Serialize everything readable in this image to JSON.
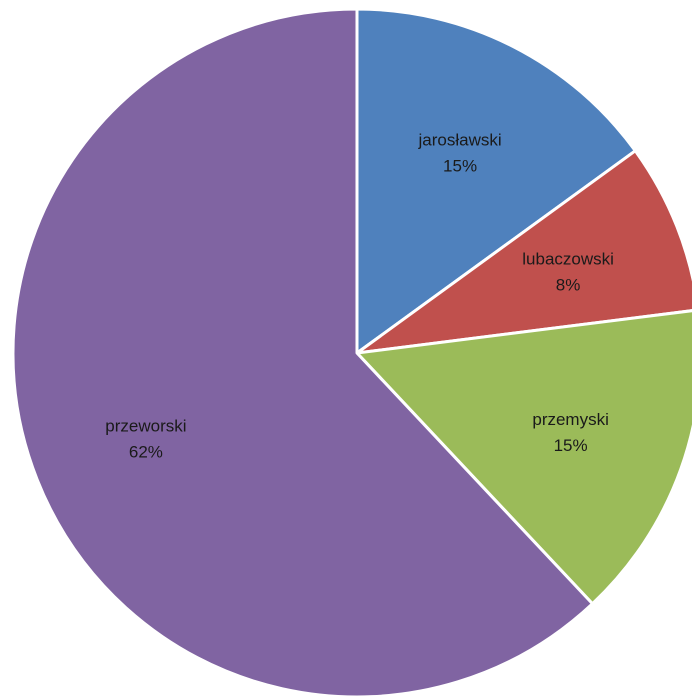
{
  "chart_data": {
    "type": "pie",
    "title": "",
    "slices": [
      {
        "label": "jarosławski",
        "value": 15,
        "display": "15%",
        "color": "#4F81BD"
      },
      {
        "label": "lubaczowski",
        "value": 8,
        "display": "8%",
        "color": "#C0504D"
      },
      {
        "label": "przemyski",
        "value": 15,
        "display": "15%",
        "color": "#9BBB59"
      },
      {
        "label": "przeworski",
        "value": 62,
        "display": "62%",
        "color": "#8064A2"
      }
    ],
    "legend": "none",
    "labels": "inside (category name and percentage)"
  }
}
